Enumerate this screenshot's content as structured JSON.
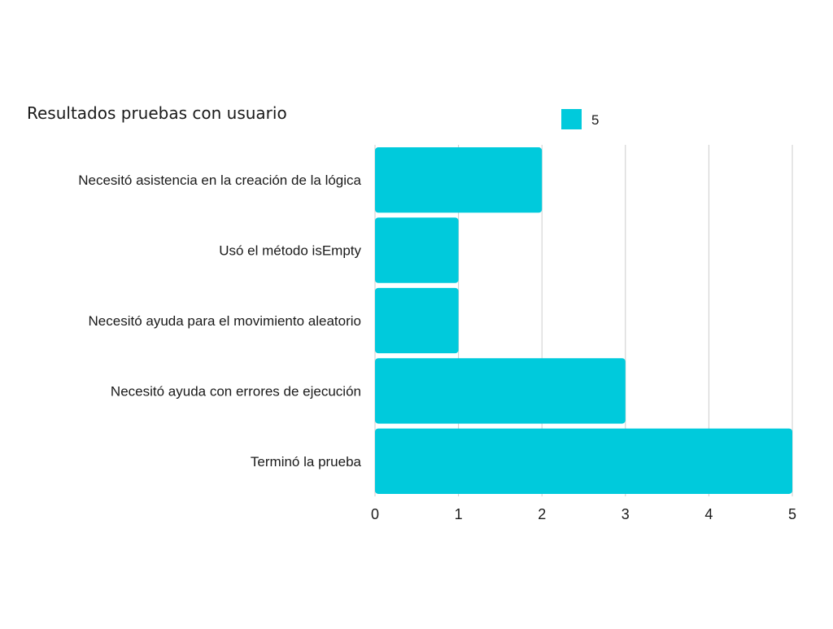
{
  "chart_data": {
    "type": "bar",
    "orientation": "horizontal",
    "title": "Resultados pruebas con usuario",
    "categories": [
      "Necesitó asistencia en la creación de la lógica",
      "Usó el método isEmpty",
      "Necesitó ayuda para el movimiento aleatorio",
      "Necesitó ayuda con errores de ejecución",
      "Terminó la prueba"
    ],
    "series": [
      {
        "name": "5",
        "values": [
          2,
          1,
          1,
          3,
          5
        ],
        "color": "#00CADC"
      }
    ],
    "xlim": [
      0,
      5
    ],
    "xticks": [
      "0",
      "1",
      "2",
      "3",
      "4",
      "5"
    ],
    "xlabel": "",
    "ylabel": "",
    "grid": "vertical",
    "legend_position": "top-right"
  }
}
